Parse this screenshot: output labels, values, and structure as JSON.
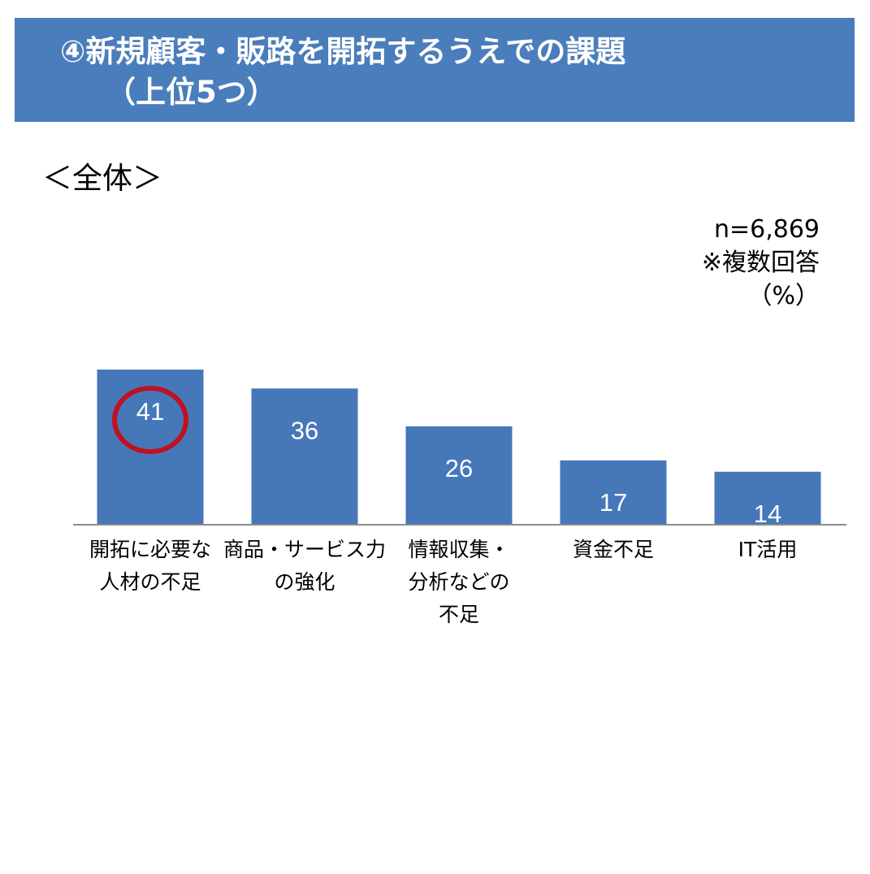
{
  "header": {
    "title_line1": "④新規顧客・販路を開拓するうえでの課題",
    "title_line2": "（上位5つ）"
  },
  "section_label": "＜全体＞",
  "notes": {
    "n": "n=6,869",
    "multi": "※複数回答",
    "unit": "（%）"
  },
  "colors": {
    "banner": "#4a7dbb",
    "bar": "#4677b8",
    "highlight_circle": "#c0111f"
  },
  "chart_data": {
    "type": "bar",
    "categories": [
      [
        "開拓に必要な",
        "人材の不足"
      ],
      [
        "商品・サービス力",
        "の強化"
      ],
      [
        "情報収集・",
        "分析などの",
        "不足"
      ],
      [
        "資金不足"
      ],
      [
        "IT活用"
      ]
    ],
    "values": [
      41,
      36,
      26,
      17,
      14
    ],
    "value_labels": [
      "41",
      "36",
      "26",
      "17",
      "14"
    ],
    "highlighted_index": 0,
    "ylim": [
      0,
      41
    ]
  }
}
